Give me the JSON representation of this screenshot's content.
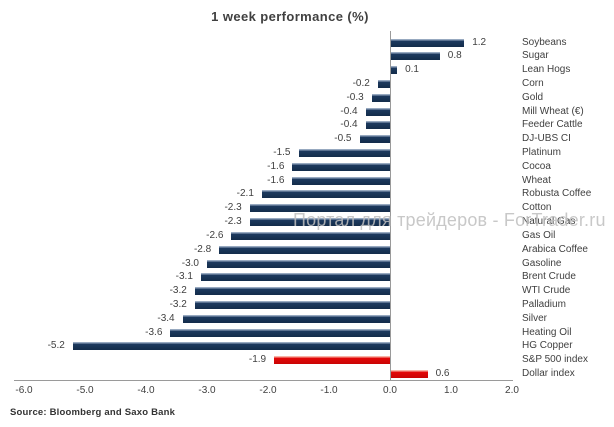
{
  "title": "1 week performance (%)",
  "watermark": {
    "text": "Портал для трейдеров - ForTrader.ru"
  },
  "source": {
    "text": "Source: Bloomberg and Saxo Bank"
  },
  "colors": {
    "bar_navy": "#17365D",
    "bar_red": "#E00707",
    "axis_line": "#9A9A9A",
    "text": "#404040",
    "watermark": "#BFBFBF"
  },
  "chart_data": {
    "type": "bar",
    "orientation": "horizontal",
    "title": "1 week performance (%)",
    "xlabel": "",
    "ylabel": "",
    "xlim": [
      -6.0,
      2.0
    ],
    "x_ticks": [
      "-6.0",
      "-5.0",
      "-4.0",
      "-3.0",
      "-2.0",
      "-1.0",
      "0.0",
      "1.0",
      "2.0"
    ],
    "grid": false,
    "legend": false,
    "categories": [
      "Soybeans",
      "Sugar",
      "Lean Hogs",
      "Corn",
      "Gold",
      "Mill Wheat (€)",
      "Feeder Cattle",
      "DJ-UBS CI",
      "Platinum",
      "Cocoa",
      "Wheat",
      "Robusta Coffee",
      "Cotton",
      "Natural Gas",
      "Gas Oil",
      "Arabica Coffee",
      "Gasoline",
      "Brent Crude",
      "WTI Crude",
      "Palladium",
      "Silver",
      "Heating Oil",
      "HG Copper",
      "S&P 500 index",
      "Dollar index"
    ],
    "values": [
      1.2,
      0.8,
      0.1,
      -0.2,
      -0.3,
      -0.4,
      -0.4,
      -0.5,
      -1.5,
      -1.6,
      -1.6,
      -2.1,
      -2.3,
      -2.3,
      -2.6,
      -2.8,
      -3.0,
      -3.1,
      -3.2,
      -3.2,
      -3.4,
      -3.6,
      -5.2,
      -1.9,
      0.6
    ],
    "value_labels": [
      "1.2",
      "0.8",
      "0.1",
      "-0.2",
      "-0.3",
      "-0.4",
      "-0.4",
      "-0.5",
      "-1.5",
      "-1.6",
      "-1.6",
      "-2.1",
      "-2.3",
      "-2.3",
      "-2.6",
      "-2.8",
      "-3.0",
      "-3.1",
      "-3.2",
      "-3.2",
      "-3.4",
      "-3.6",
      "-5.2",
      "-1.9",
      "0.6"
    ],
    "bar_colors": [
      "navy",
      "navy",
      "navy",
      "navy",
      "navy",
      "navy",
      "navy",
      "navy",
      "navy",
      "navy",
      "navy",
      "navy",
      "navy",
      "navy",
      "navy",
      "navy",
      "navy",
      "navy",
      "navy",
      "navy",
      "navy",
      "navy",
      "navy",
      "red",
      "red"
    ]
  }
}
